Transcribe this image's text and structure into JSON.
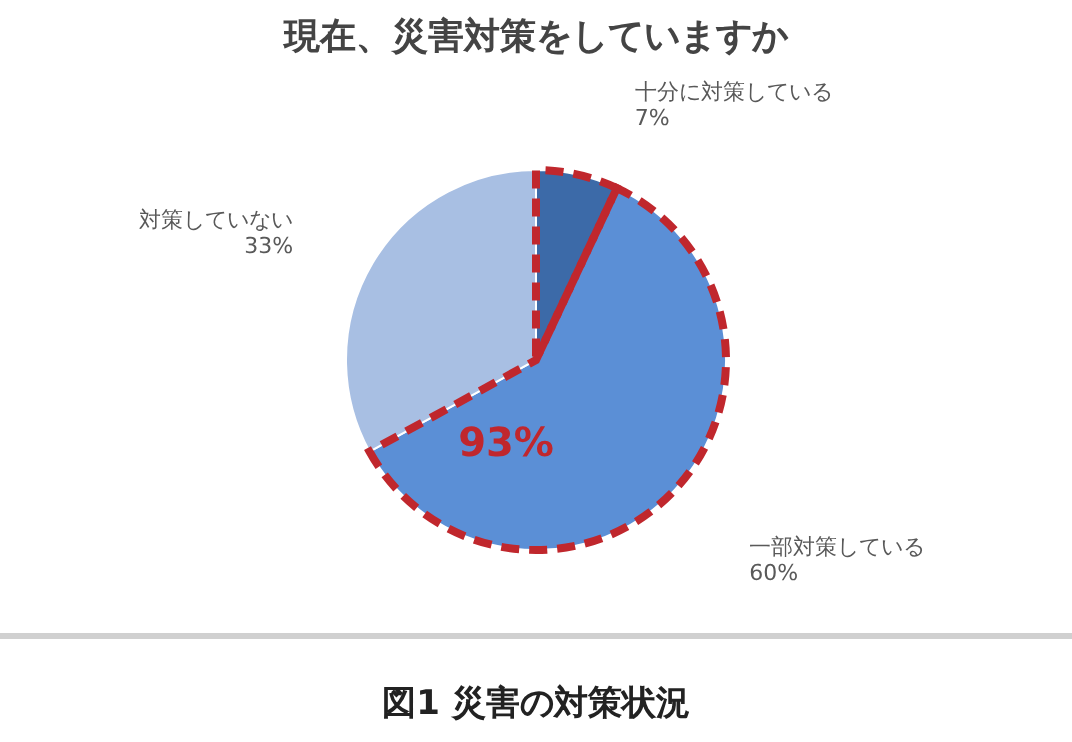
{
  "chart_data": {
    "type": "pie",
    "title": "現在、災害対策をしていますか",
    "categories": [
      "十分に対策している",
      "一部対策している",
      "対策していない"
    ],
    "values": [
      7,
      60,
      33
    ],
    "colors": [
      "#3c6aa8",
      "#5b8fd6",
      "#a8bfe3"
    ],
    "value_labels": [
      "7%",
      "60%",
      "33%"
    ],
    "annotations": [
      "93%",
      "図1  災害の対策状況"
    ]
  }
}
